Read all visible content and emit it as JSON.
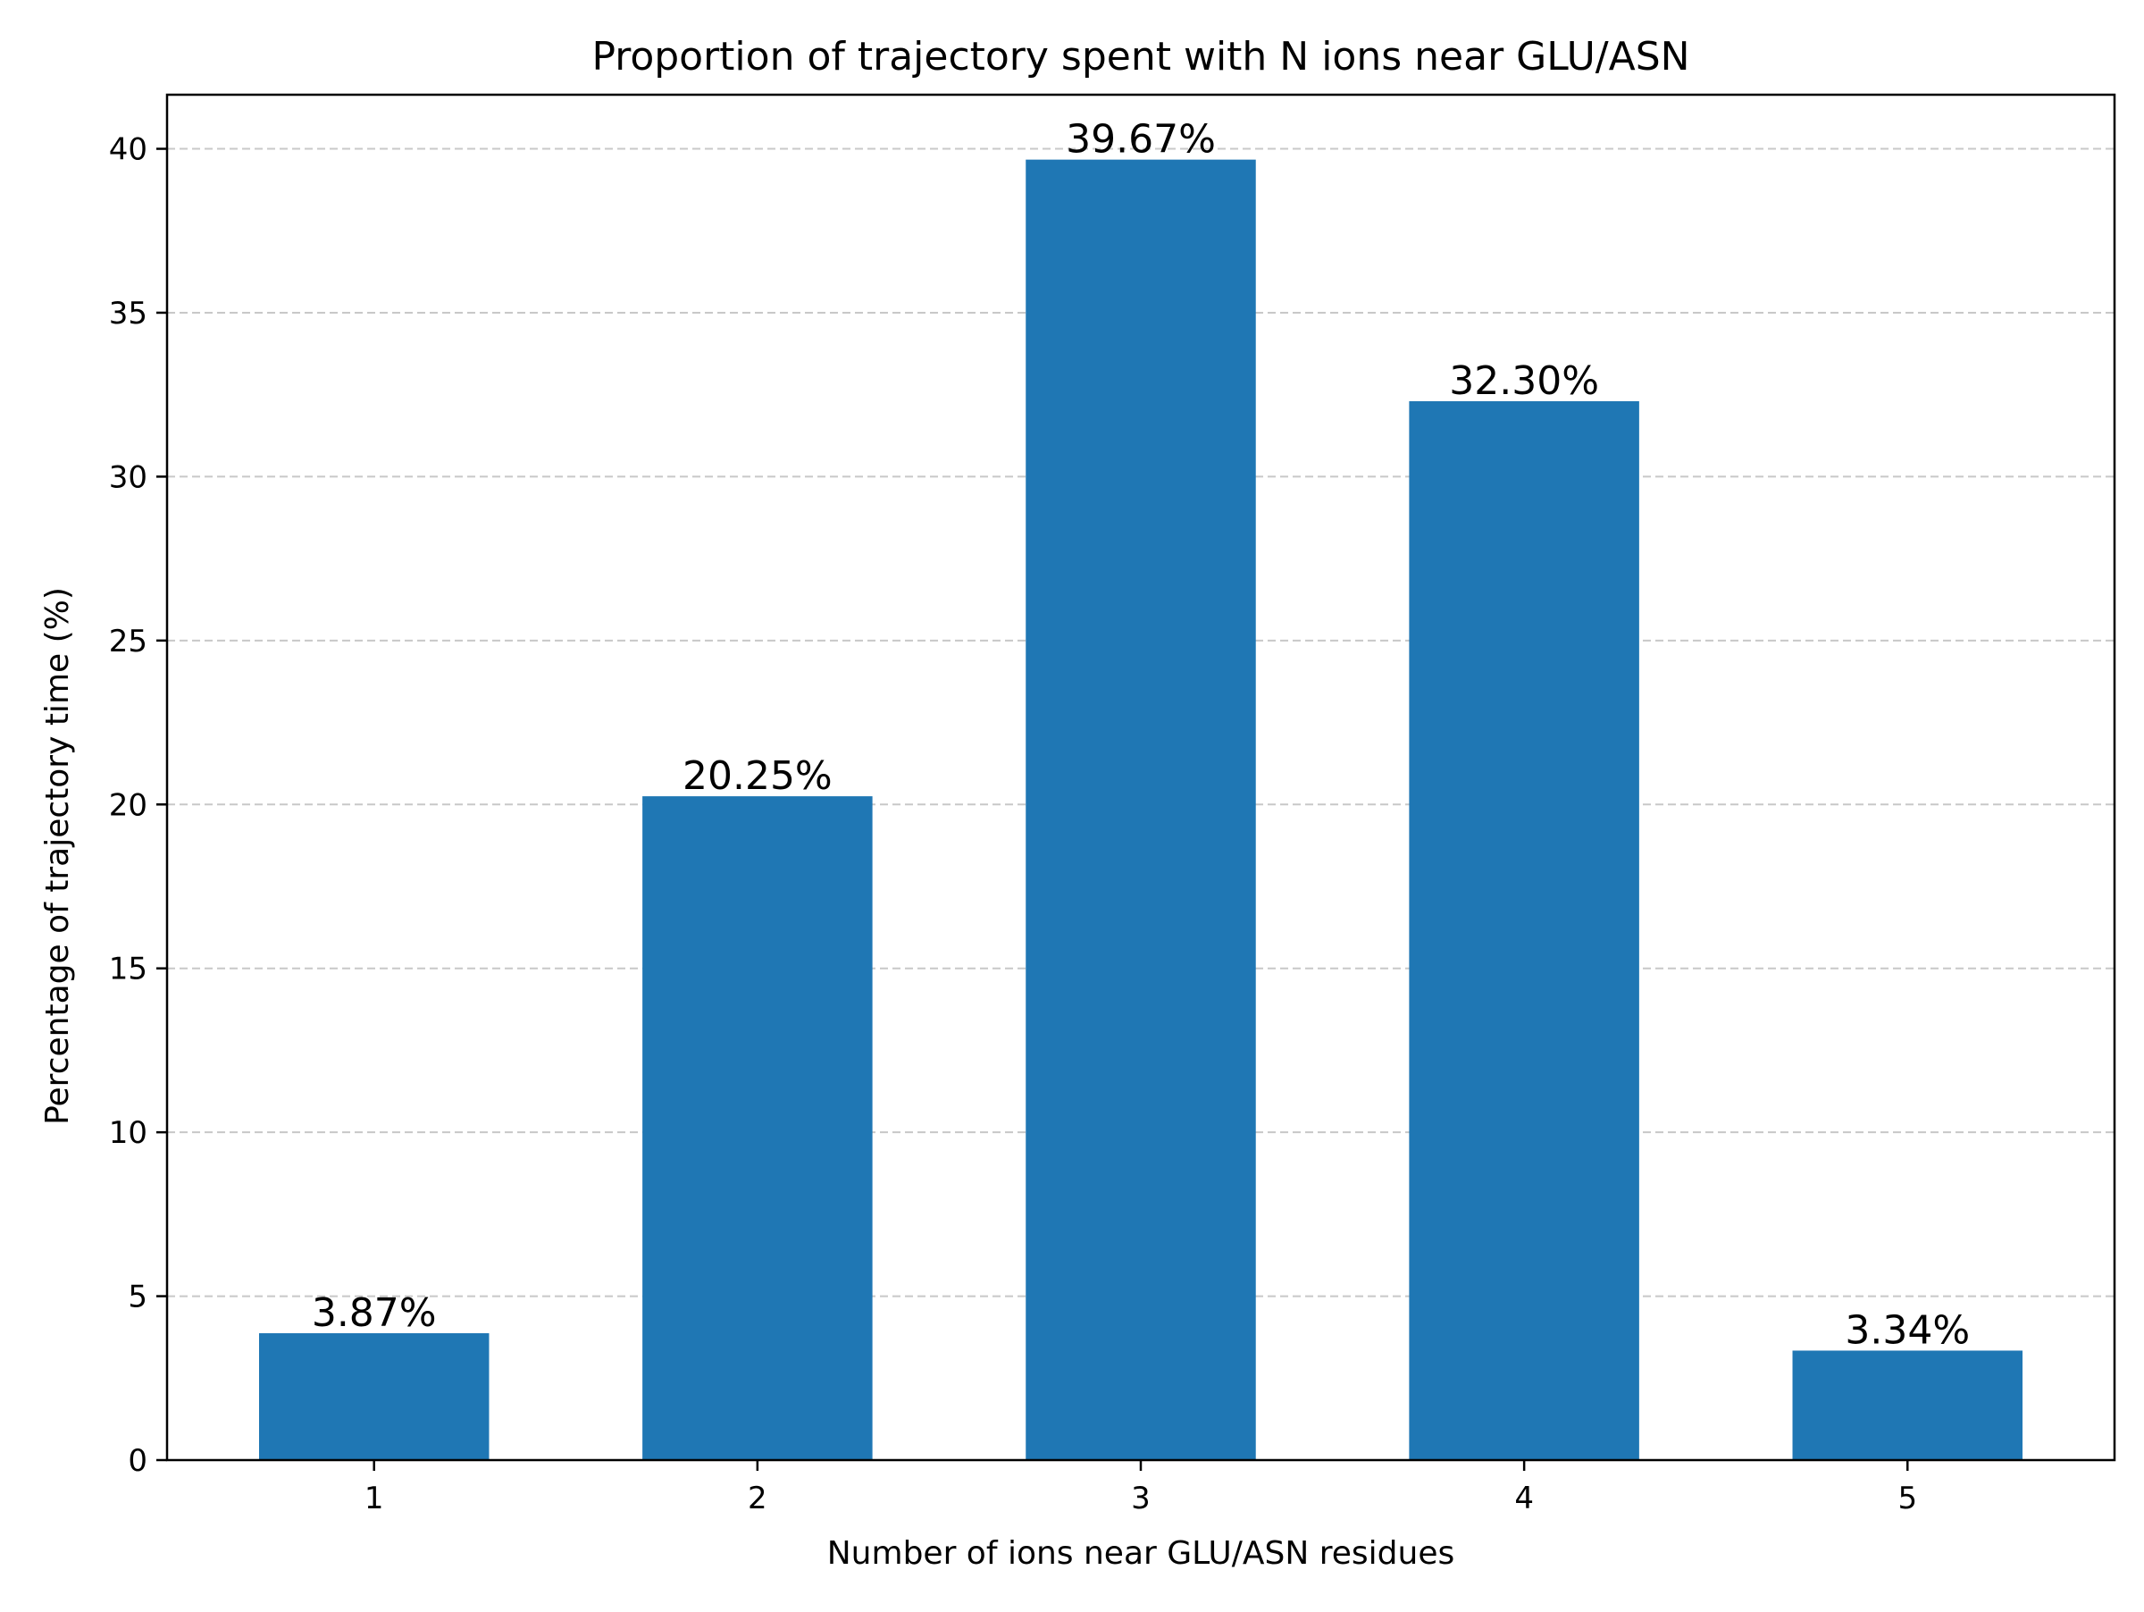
{
  "chart_data": {
    "type": "bar",
    "title": "Proportion of trajectory spent with N ions near GLU/ASN",
    "xlabel": "Number of ions near GLU/ASN residues",
    "ylabel": "Percentage of trajectory time (%)",
    "categories": [
      "1",
      "2",
      "3",
      "4",
      "5"
    ],
    "values": [
      3.87,
      20.25,
      39.67,
      32.3,
      3.34
    ],
    "data_labels": [
      "3.87%",
      "20.25%",
      "39.67%",
      "32.30%",
      "3.34%"
    ],
    "ylim": [
      0,
      41.65
    ],
    "yticks": [
      0,
      5,
      10,
      15,
      20,
      25,
      30,
      35,
      40
    ],
    "ytick_labels": [
      "0",
      "5",
      "10",
      "15",
      "20",
      "25",
      "30",
      "35",
      "40"
    ],
    "grid": "y-dashed",
    "legend": "none",
    "colors": {
      "bar": "#1f77b4",
      "grid": "#c8c8c8",
      "axis": "#000000",
      "text": "#000000"
    }
  }
}
